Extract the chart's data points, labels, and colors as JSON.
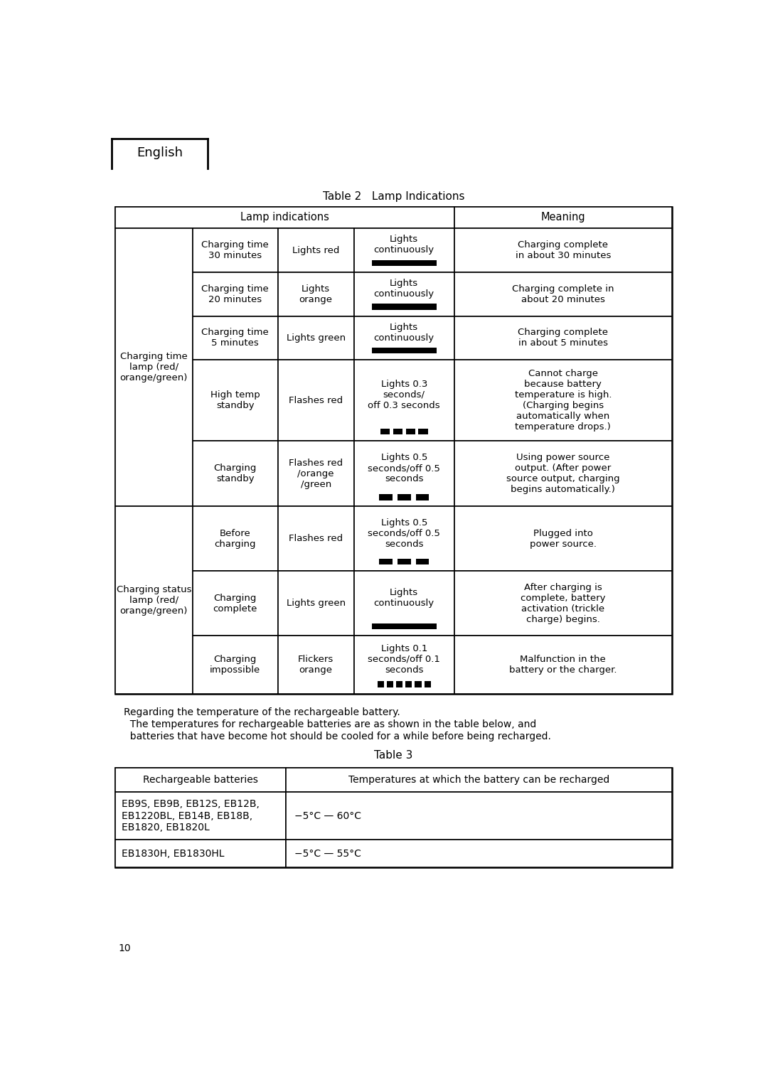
{
  "title_tab": "Table 2   Lamp Indications",
  "title_tab3": "Table 3",
  "header_lang": "English",
  "bg_color": "#ffffff",
  "text_color": "#000000",
  "col1_label1": "Charging time\nlamp (red/\norange/green)",
  "col1_label2": "Charging status\nlamp (red/\norange/green)",
  "note_line1": "Regarding the temperature of the rechargeable battery.",
  "note_line2": "  The temperatures for rechargeable batteries are as shown in the table below, and",
  "note_line3": "  batteries that have become hot should be cooled for a while before being recharged.",
  "table3_headers": [
    "Rechargeable batteries",
    "Temperatures at which the battery can be recharged"
  ],
  "table3_rows": [
    [
      "EB9S, EB9B, EB12S, EB12B,\nEB1220BL, EB14B, EB18B,\nEB1820, EB1820L",
      "−5°C — 60°C"
    ],
    [
      "EB1830H, EB1830HL",
      "−5°C — 55°C"
    ]
  ],
  "page_num": "10",
  "fig_w": 10.8,
  "fig_h": 15.29,
  "dpi": 100
}
